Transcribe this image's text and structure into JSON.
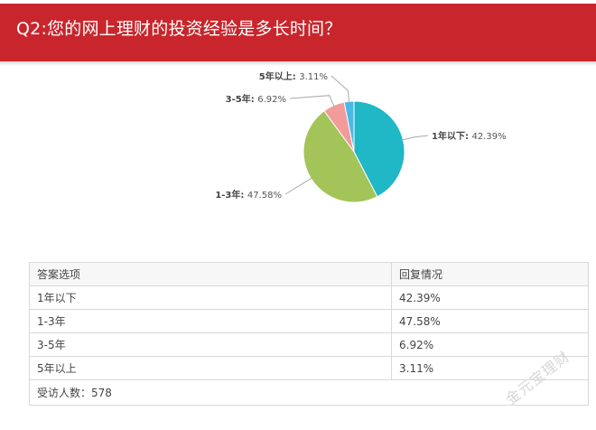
{
  "question": {
    "title": "Q2:您的网上理财的投资经验是多长时间？"
  },
  "chart_data": {
    "type": "pie",
    "categories": [
      "1年以下",
      "1-3年",
      "3-5年",
      "5年以上"
    ],
    "values": [
      42.39,
      47.58,
      6.92,
      3.11
    ],
    "labels": [
      "42.39%",
      "47.58%",
      "6.92%",
      "3.11%"
    ],
    "colors": [
      "#20b7c7",
      "#a3c458",
      "#f29b9b",
      "#4bb9e6"
    ],
    "title": "",
    "xlabel": "",
    "ylabel": ""
  },
  "table": {
    "headers": [
      "答案选项",
      "回复情况"
    ],
    "rows": [
      [
        "1年以下",
        "42.39%"
      ],
      [
        "1-3年",
        "47.58%"
      ],
      [
        "3-5年",
        "6.92%"
      ],
      [
        "5年以上",
        "3.11%"
      ]
    ],
    "total_label": "受访人数：578"
  },
  "watermark": "金元宝理财"
}
